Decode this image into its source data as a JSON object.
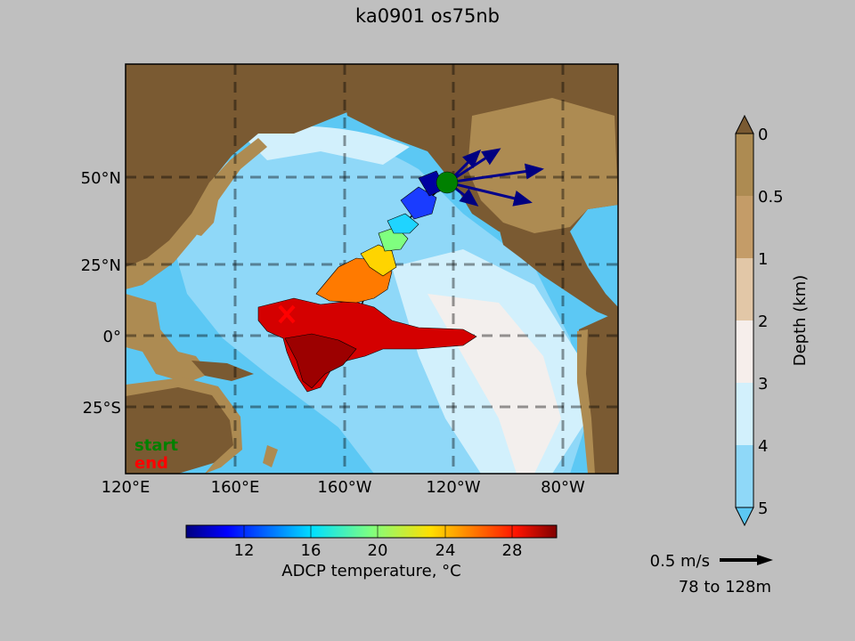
{
  "title": "ka0901 os75nb",
  "map": {
    "lat_ticks": [
      "50°N",
      "25°N",
      "0°",
      "25°S"
    ],
    "lon_ticks": [
      "120°E",
      "160°E",
      "160°W",
      "120°W",
      "80°W"
    ],
    "legend": {
      "start": "start",
      "end": "end",
      "start_color": "#008000",
      "end_color": "#ff0000"
    }
  },
  "depth_colorbar": {
    "label": "Depth (km)",
    "ticks": [
      "0",
      "0.5",
      "1",
      "2",
      "3",
      "4",
      "5"
    ],
    "colors": [
      "#7a5a32",
      "#ad8b52",
      "#c49c68",
      "#e2c7a7",
      "#f6eeeb",
      "#d2f0fc",
      "#8fd8f8",
      "#5cc8f4"
    ]
  },
  "temperature_colorbar": {
    "label": "ADCP temperature, °C",
    "ticks": [
      "12",
      "16",
      "20",
      "24",
      "28"
    ]
  },
  "velocity_scale": {
    "label": "0.5 m/s",
    "depth_range": "78 to 128m"
  }
}
